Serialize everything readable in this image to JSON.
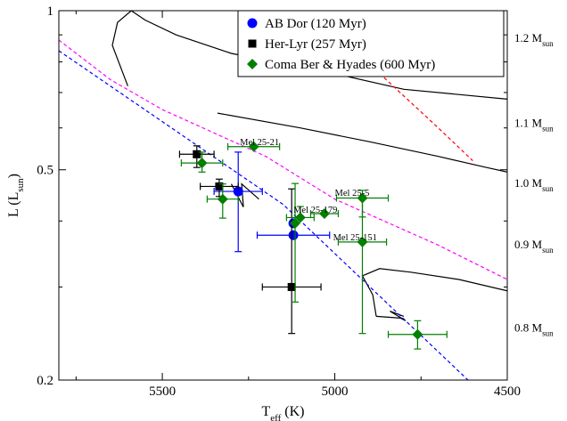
{
  "chart_data": {
    "type": "scatter",
    "x_axis": {
      "label": "T",
      "label_sub": "eff",
      "label_unit": " (K)",
      "range": [
        5800,
        4500
      ],
      "reversed": true,
      "ticks": [
        5500,
        5000,
        4500
      ]
    },
    "y_axis": {
      "label": "L (L",
      "label_sub": "sun",
      "label_close": ")",
      "scale": "log",
      "range": [
        0.2,
        1.0
      ],
      "ticks": [
        {
          "value": 0.2,
          "label": "0.2"
        },
        {
          "value": 0.5,
          "label": "0.5"
        },
        {
          "value": 1.0,
          "label": "1"
        }
      ]
    },
    "legend": {
      "placement": "top-right",
      "entries": [
        {
          "label": "AB Dor (120 Myr)",
          "marker": "circle",
          "color": "#0000ff"
        },
        {
          "label": "Her-Lyr (257 Myr)",
          "marker": "square",
          "color": "#000000"
        },
        {
          "label": "Coma Ber & Hyades (600 Myr)",
          "marker": "diamond",
          "color": "#008000"
        }
      ]
    },
    "series": [
      {
        "name": "AB Dor (120 Myr)",
        "marker": "circle",
        "color": "#0000ff",
        "points": [
          {
            "x": 5280,
            "y": 0.455,
            "xerr": 70,
            "yerr_low": 0.105,
            "yerr_high": 0.085
          },
          {
            "x": 5120,
            "y": 0.376,
            "xerr": 105,
            "yerr_low": 0.0,
            "yerr_high": 0.0
          },
          {
            "x": 5120,
            "y": 0.396,
            "xerr": 0,
            "yerr_low": 0.0,
            "yerr_high": 0.0
          }
        ]
      },
      {
        "name": "Her-Lyr (257 Myr)",
        "marker": "square",
        "color": "#000000",
        "points": [
          {
            "x": 5400,
            "y": 0.535,
            "xerr": 50,
            "yerr_low": 0.03,
            "yerr_high": 0.02
          },
          {
            "x": 5335,
            "y": 0.465,
            "xerr": 55,
            "yerr_low": 0.02,
            "yerr_high": 0.015
          },
          {
            "x": 5125,
            "y": 0.3,
            "xerr": 85,
            "yerr_low": 0.055,
            "yerr_high": 0.16
          }
        ]
      },
      {
        "name": "Coma Ber & Hyades (600 Myr)",
        "marker": "diamond",
        "color": "#008000",
        "points": [
          {
            "x": 5385,
            "y": 0.515,
            "xerr": 60,
            "yerr_low": 0.02,
            "yerr_high": 0.025
          },
          {
            "x": 5325,
            "y": 0.44,
            "xerr": 45,
            "yerr_low": 0.035,
            "yerr_high": 0.03
          },
          {
            "x": 5235,
            "y": 0.553,
            "xerr": 75,
            "yerr_low": 0.0,
            "yerr_high": 0.0
          },
          {
            "x": 5115,
            "y": 0.396,
            "xerr": 0,
            "yerr_low": 0.115,
            "yerr_high": 0.075
          },
          {
            "x": 5100,
            "y": 0.406,
            "xerr": 40,
            "yerr_low": 0.0,
            "yerr_high": 0.02
          },
          {
            "x": 5030,
            "y": 0.413,
            "xerr": 40,
            "yerr_low": 0.0,
            "yerr_high": 0.0
          },
          {
            "x": 4920,
            "y": 0.442,
            "xerr": 75,
            "yerr_low": 0.035,
            "yerr_high": 0.015
          },
          {
            "x": 4920,
            "y": 0.365,
            "xerr": 70,
            "yerr_low": 0.12,
            "yerr_high": 0.075
          },
          {
            "x": 4760,
            "y": 0.244,
            "xerr": 85,
            "yerr_low": 0.015,
            "yerr_high": 0.015
          }
        ]
      }
    ],
    "annotations": [
      {
        "text": "Mel 25-21",
        "x": 5275,
        "y": 0.557
      },
      {
        "text": "Mel 25-5",
        "x": 5000,
        "y": 0.446
      },
      {
        "text": "Mel 25-179",
        "x": 5120,
        "y": 0.415
      },
      {
        "text": "Mel 25-151",
        "x": 5005,
        "y": 0.368
      }
    ],
    "mass_labels": [
      {
        "label": "1.2 M",
        "sub": "sun",
        "y": 0.89
      },
      {
        "label": "1.1 M",
        "sub": "sun",
        "y": 0.615
      },
      {
        "label": "1.0 M",
        "sub": "sun",
        "y": 0.473
      },
      {
        "label": "0.9 M",
        "sub": "sun",
        "y": 0.362
      },
      {
        "label": "0.8 M",
        "sub": "sun",
        "y": 0.252
      }
    ],
    "tracks": [
      {
        "name": "1.2 Msun",
        "color": "#000000",
        "dash": "",
        "points": [
          [
            5600,
            0.72
          ],
          [
            5645,
            0.86
          ],
          [
            5630,
            0.95
          ],
          [
            5590,
            1.0
          ],
          [
            5550,
            0.96
          ],
          [
            5460,
            0.9
          ],
          [
            5300,
            0.83
          ],
          [
            5000,
            0.76
          ],
          [
            4800,
            0.71
          ],
          [
            4500,
            0.68
          ]
        ]
      },
      {
        "name": "1.1 Msun",
        "color": "#000000",
        "dash": "",
        "points": [
          [
            5340,
            0.64
          ],
          [
            5100,
            0.6
          ],
          [
            4900,
            0.565
          ],
          [
            4700,
            0.53
          ],
          [
            4560,
            0.505
          ],
          [
            4500,
            0.495
          ]
        ]
      },
      {
        "name": "1.0 Msun",
        "color": "#000000",
        "dash": "",
        "points": [
          [
            5300,
            0.47
          ],
          [
            5265,
            0.425
          ],
          [
            5270,
            0.47
          ],
          [
            5220,
            0.44
          ]
        ]
      },
      {
        "name": "0.8 Msun",
        "color": "#000000",
        "dash": "",
        "points": [
          [
            4880,
            0.264
          ],
          [
            4890,
            0.29
          ],
          [
            4920,
            0.315
          ],
          [
            4870,
            0.325
          ],
          [
            4780,
            0.32
          ],
          [
            4640,
            0.31
          ],
          [
            4500,
            0.295
          ]
        ]
      },
      {
        "name": "0.8 Msun hook",
        "color": "#000000",
        "dash": "",
        "points": [
          [
            4880,
            0.264
          ],
          [
            4810,
            0.262
          ],
          [
            4795,
            0.259
          ],
          [
            4840,
            0.27
          ],
          [
            4800,
            0.264
          ]
        ]
      },
      {
        "name": "ZAMS",
        "color": "#0000ff",
        "dash": "4,3",
        "points": [
          [
            5800,
            0.84
          ],
          [
            5150,
            0.43
          ],
          [
            4500,
            0.17
          ]
        ]
      },
      {
        "name": "isochrone magenta",
        "color": "#ff00ff",
        "dash": "4,3",
        "points": [
          [
            5800,
            0.88
          ],
          [
            5650,
            0.74
          ],
          [
            5500,
            0.65
          ],
          [
            5200,
            0.53
          ],
          [
            5000,
            0.44
          ],
          [
            4700,
            0.36
          ],
          [
            4500,
            0.31
          ]
        ]
      },
      {
        "name": "isochrone red",
        "color": "#ff0000",
        "dash": "4,3",
        "points": [
          [
            4950,
            0.85
          ],
          [
            4700,
            0.6
          ],
          [
            4600,
            0.52
          ]
        ]
      }
    ]
  }
}
